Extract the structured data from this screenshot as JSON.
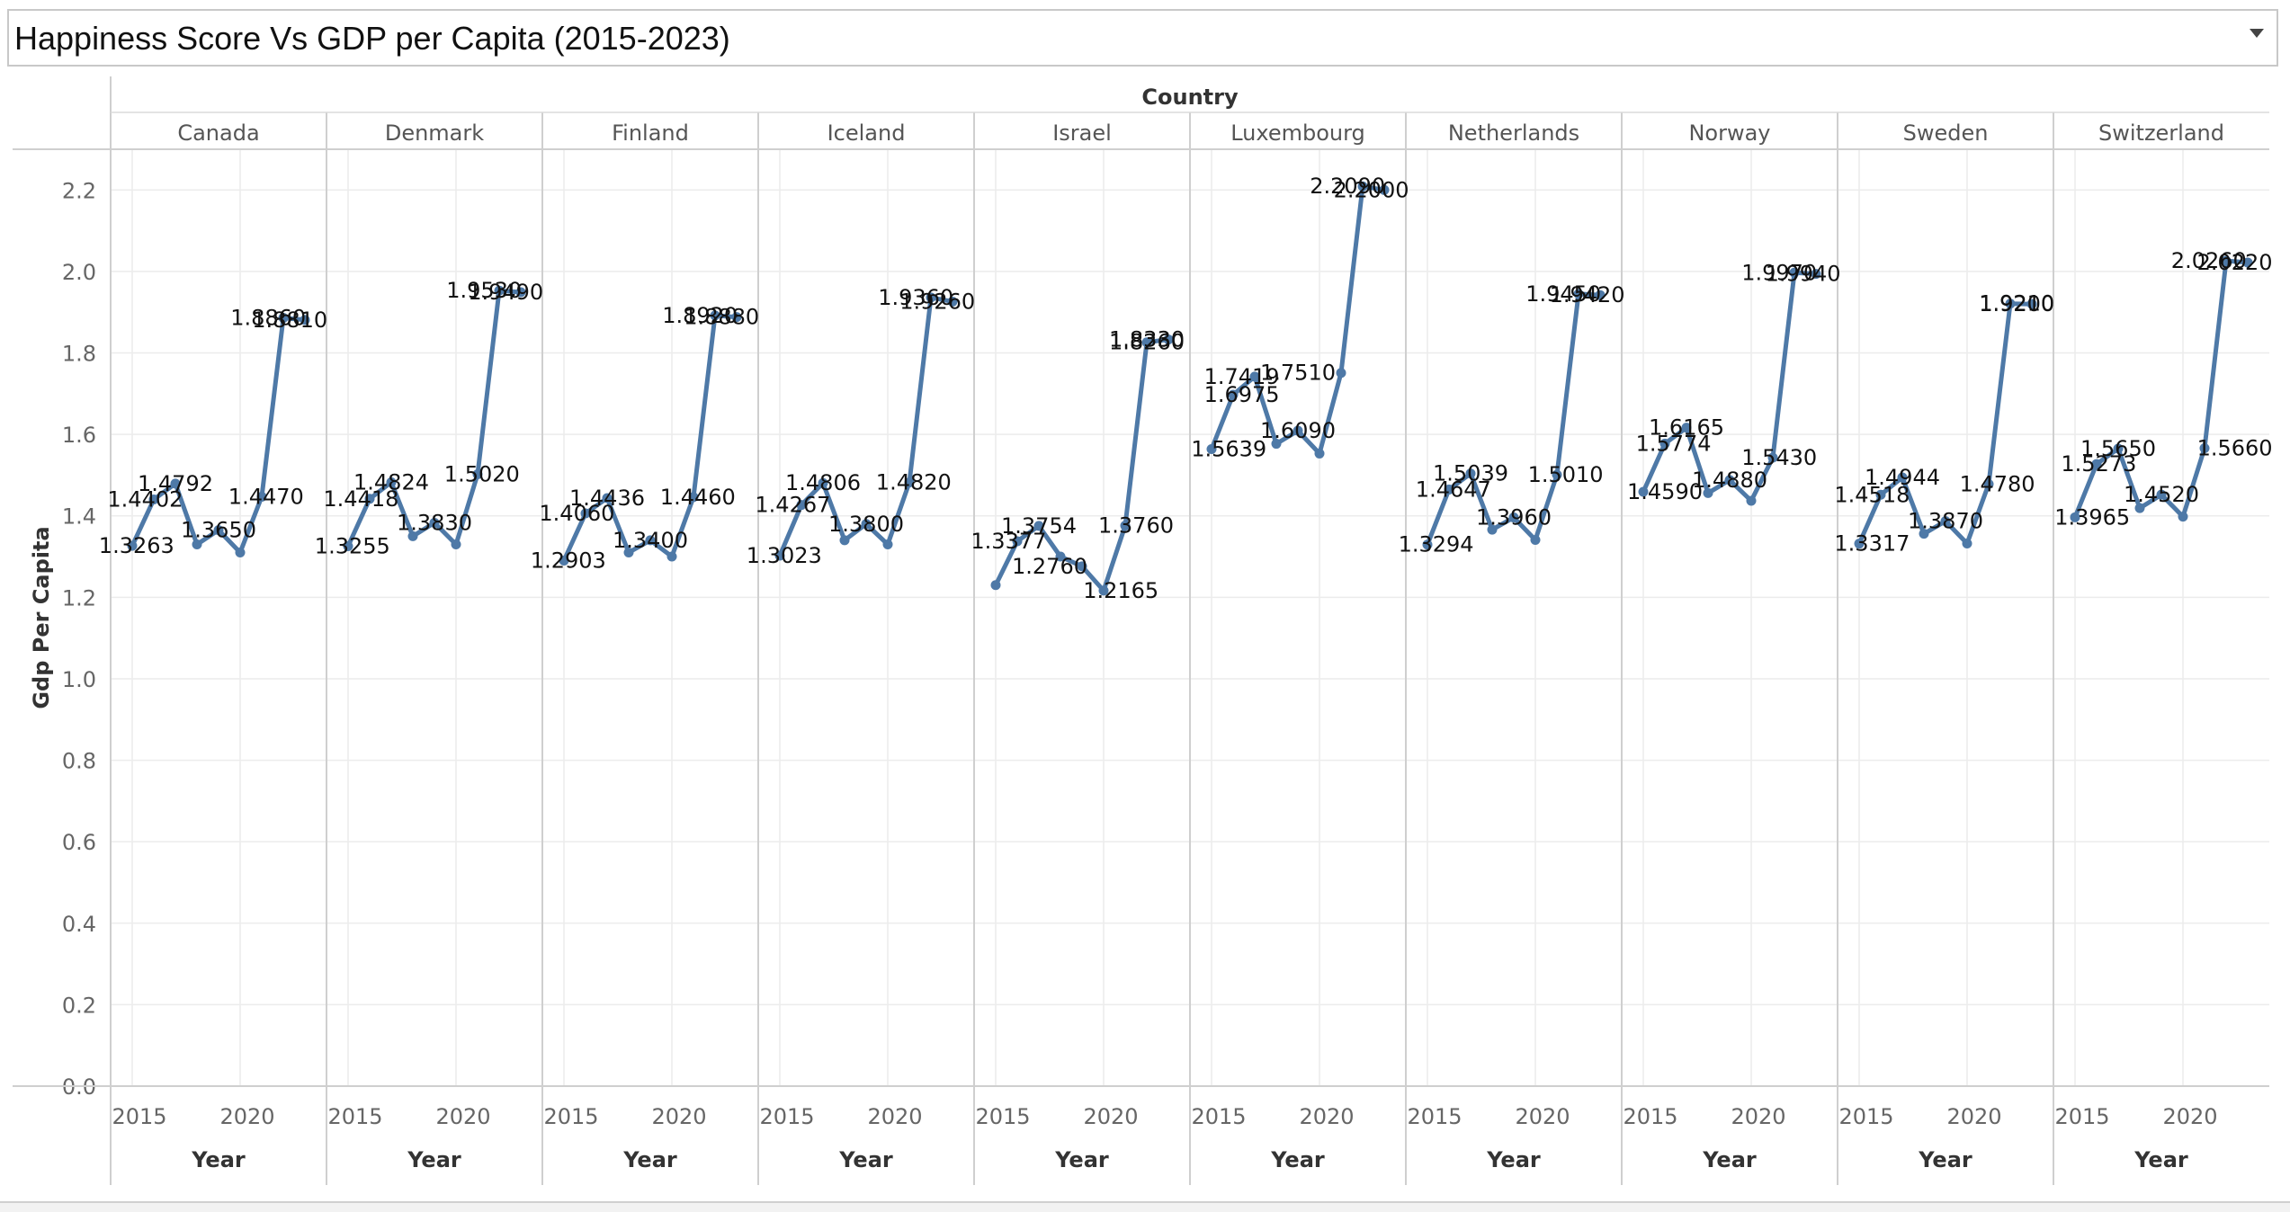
{
  "title": "Happiness Score Vs GDP per Capita (2015-2023)",
  "accent_color": "#4e79a7",
  "chart_data": {
    "type": "line",
    "column_header": "Country",
    "xlabel": "Year",
    "ylabel": "Gdp Per Capita",
    "ylim": [
      0.0,
      2.3
    ],
    "yticks": [
      0.0,
      0.2,
      0.4,
      0.6,
      0.8,
      1.0,
      1.2,
      1.4,
      1.6,
      1.8,
      2.0,
      2.2
    ],
    "xticks": [
      2015,
      2020
    ],
    "xlim": [
      2014,
      2024
    ],
    "grid": true,
    "panels": [
      {
        "country": "Canada",
        "x": [
          2015,
          2016,
          2017,
          2018,
          2019,
          2020,
          2021,
          2022,
          2023
        ],
        "y": [
          1.3263,
          1.4402,
          1.4792,
          1.33,
          1.365,
          1.31,
          1.447,
          1.886,
          1.881
        ]
      },
      {
        "country": "Denmark",
        "x": [
          2015,
          2016,
          2017,
          2018,
          2019,
          2020,
          2021,
          2022,
          2023
        ],
        "y": [
          1.3255,
          1.4418,
          1.4824,
          1.35,
          1.383,
          1.33,
          1.502,
          1.953,
          1.949
        ]
      },
      {
        "country": "Finland",
        "x": [
          2015,
          2016,
          2017,
          2018,
          2019,
          2020,
          2021,
          2022,
          2023
        ],
        "y": [
          1.2903,
          1.406,
          1.4436,
          1.31,
          1.34,
          1.3,
          1.446,
          1.892,
          1.888
        ]
      },
      {
        "country": "Iceland",
        "x": [
          2015,
          2016,
          2017,
          2018,
          2019,
          2020,
          2021,
          2022,
          2023
        ],
        "y": [
          1.3023,
          1.4267,
          1.4806,
          1.34,
          1.38,
          1.33,
          1.482,
          1.936,
          1.926
        ]
      },
      {
        "country": "Israel",
        "x": [
          2015,
          2016,
          2017,
          2018,
          2019,
          2020,
          2021,
          2022,
          2023
        ],
        "y": [
          1.23,
          1.3377,
          1.3754,
          1.3,
          1.276,
          1.2165,
          1.376,
          1.826,
          1.833
        ]
      },
      {
        "country": "Luxembourg",
        "x": [
          2015,
          2016,
          2017,
          2018,
          2019,
          2020,
          2021,
          2022,
          2023
        ],
        "y": [
          1.5639,
          1.6975,
          1.7419,
          1.577,
          1.609,
          1.553,
          1.751,
          2.209,
          2.2
        ]
      },
      {
        "country": "Netherlands",
        "x": [
          2015,
          2016,
          2017,
          2018,
          2019,
          2020,
          2021,
          2022,
          2023
        ],
        "y": [
          1.3294,
          1.4647,
          1.5039,
          1.366,
          1.396,
          1.341,
          1.501,
          1.945,
          1.942
        ]
      },
      {
        "country": "Norway",
        "x": [
          2015,
          2016,
          2017,
          2018,
          2019,
          2020,
          2021,
          2022,
          2023
        ],
        "y": [
          1.459,
          1.5774,
          1.6165,
          1.456,
          1.488,
          1.437,
          1.543,
          1.997,
          1.994
        ]
      },
      {
        "country": "Sweden",
        "x": [
          2015,
          2016,
          2017,
          2018,
          2019,
          2020,
          2021,
          2022,
          2023
        ],
        "y": [
          1.3317,
          1.4518,
          1.4944,
          1.356,
          1.387,
          1.332,
          1.478,
          1.921,
          1.92
        ]
      },
      {
        "country": "Switzerland",
        "x": [
          2015,
          2016,
          2017,
          2018,
          2019,
          2020,
          2021,
          2022,
          2023
        ],
        "y": [
          1.3965,
          1.5273,
          1.565,
          1.419,
          1.452,
          1.398,
          1.566,
          2.026,
          2.022
        ]
      }
    ],
    "data_labels": [
      {
        "panel": 0,
        "x": 2015.2,
        "y": 1.3263,
        "text": "1.3263"
      },
      {
        "panel": 0,
        "x": 2015.6,
        "y": 1.4402,
        "text": "1.4402"
      },
      {
        "panel": 0,
        "x": 2017.0,
        "y": 1.4792,
        "text": "1.4792"
      },
      {
        "panel": 0,
        "x": 2019.0,
        "y": 1.365,
        "text": "1.3650"
      },
      {
        "panel": 0,
        "x": 2021.2,
        "y": 1.447,
        "text": "1.4470"
      },
      {
        "panel": 0,
        "x": 2021.3,
        "y": 1.886,
        "text": "1.8860"
      },
      {
        "panel": 0,
        "x": 2022.3,
        "y": 1.881,
        "text": "1.8810"
      },
      {
        "panel": 1,
        "x": 2015.2,
        "y": 1.3255,
        "text": "1.3255"
      },
      {
        "panel": 1,
        "x": 2015.6,
        "y": 1.4418,
        "text": "1.4418"
      },
      {
        "panel": 1,
        "x": 2017.0,
        "y": 1.4824,
        "text": "1.4824"
      },
      {
        "panel": 1,
        "x": 2019.0,
        "y": 1.383,
        "text": "1.3830"
      },
      {
        "panel": 1,
        "x": 2021.2,
        "y": 1.502,
        "text": "1.5020"
      },
      {
        "panel": 1,
        "x": 2021.3,
        "y": 1.953,
        "text": "1.9530"
      },
      {
        "panel": 1,
        "x": 2022.3,
        "y": 1.949,
        "text": "1.9490"
      },
      {
        "panel": 2,
        "x": 2015.2,
        "y": 1.2903,
        "text": "1.2903"
      },
      {
        "panel": 2,
        "x": 2015.6,
        "y": 1.406,
        "text": "1.4060"
      },
      {
        "panel": 2,
        "x": 2017.0,
        "y": 1.4436,
        "text": "1.4436"
      },
      {
        "panel": 2,
        "x": 2019.0,
        "y": 1.34,
        "text": "1.3400"
      },
      {
        "panel": 2,
        "x": 2021.2,
        "y": 1.446,
        "text": "1.4460"
      },
      {
        "panel": 2,
        "x": 2021.3,
        "y": 1.892,
        "text": "1.8920"
      },
      {
        "panel": 2,
        "x": 2022.3,
        "y": 1.888,
        "text": "1.8880"
      },
      {
        "panel": 3,
        "x": 2015.2,
        "y": 1.3023,
        "text": "1.3023"
      },
      {
        "panel": 3,
        "x": 2015.6,
        "y": 1.4267,
        "text": "1.4267"
      },
      {
        "panel": 3,
        "x": 2017.0,
        "y": 1.4806,
        "text": "1.4806"
      },
      {
        "panel": 3,
        "x": 2019.0,
        "y": 1.38,
        "text": "1.3800"
      },
      {
        "panel": 3,
        "x": 2021.2,
        "y": 1.482,
        "text": "1.4820"
      },
      {
        "panel": 3,
        "x": 2021.3,
        "y": 1.936,
        "text": "1.9360"
      },
      {
        "panel": 3,
        "x": 2022.3,
        "y": 1.926,
        "text": "1.9260"
      },
      {
        "panel": 4,
        "x": 2015.6,
        "y": 1.3377,
        "text": "1.3377"
      },
      {
        "panel": 4,
        "x": 2017.0,
        "y": 1.3754,
        "text": "1.3754"
      },
      {
        "panel": 4,
        "x": 2017.5,
        "y": 1.276,
        "text": "1.2760"
      },
      {
        "panel": 4,
        "x": 2020.8,
        "y": 1.2165,
        "text": "1.2165"
      },
      {
        "panel": 4,
        "x": 2021.5,
        "y": 1.376,
        "text": "1.3760"
      },
      {
        "panel": 4,
        "x": 2022.0,
        "y": 1.826,
        "text": "1.8260"
      },
      {
        "panel": 4,
        "x": 2022.0,
        "y": 1.833,
        "text": "1.8330"
      },
      {
        "panel": 5,
        "x": 2015.8,
        "y": 1.5639,
        "text": "1.5639"
      },
      {
        "panel": 5,
        "x": 2016.4,
        "y": 1.6975,
        "text": "1.6975"
      },
      {
        "panel": 5,
        "x": 2016.4,
        "y": 1.7419,
        "text": "1.7419"
      },
      {
        "panel": 5,
        "x": 2019.0,
        "y": 1.609,
        "text": "1.6090"
      },
      {
        "panel": 5,
        "x": 2019.0,
        "y": 1.751,
        "text": "1.7510"
      },
      {
        "panel": 5,
        "x": 2021.3,
        "y": 2.209,
        "text": "2.2090"
      },
      {
        "panel": 5,
        "x": 2022.4,
        "y": 2.2,
        "text": "2.2000"
      },
      {
        "panel": 6,
        "x": 2015.4,
        "y": 1.3294,
        "text": "1.3294"
      },
      {
        "panel": 6,
        "x": 2016.2,
        "y": 1.4647,
        "text": "1.4647"
      },
      {
        "panel": 6,
        "x": 2017.0,
        "y": 1.5039,
        "text": "1.5039"
      },
      {
        "panel": 6,
        "x": 2019.0,
        "y": 1.396,
        "text": "1.3960"
      },
      {
        "panel": 6,
        "x": 2021.4,
        "y": 1.501,
        "text": "1.5010"
      },
      {
        "panel": 6,
        "x": 2021.3,
        "y": 1.945,
        "text": "1.9450"
      },
      {
        "panel": 6,
        "x": 2022.4,
        "y": 1.942,
        "text": "1.9420"
      },
      {
        "panel": 7,
        "x": 2016.0,
        "y": 1.459,
        "text": "1.4590"
      },
      {
        "panel": 7,
        "x": 2016.4,
        "y": 1.5774,
        "text": "1.5774"
      },
      {
        "panel": 7,
        "x": 2017.0,
        "y": 1.6165,
        "text": "1.6165"
      },
      {
        "panel": 7,
        "x": 2019.0,
        "y": 1.488,
        "text": "1.4880"
      },
      {
        "panel": 7,
        "x": 2021.3,
        "y": 1.543,
        "text": "1.5430"
      },
      {
        "panel": 7,
        "x": 2021.3,
        "y": 1.997,
        "text": "1.9970"
      },
      {
        "panel": 7,
        "x": 2022.4,
        "y": 1.994,
        "text": "1.9940"
      },
      {
        "panel": 8,
        "x": 2015.6,
        "y": 1.3317,
        "text": "1.3317"
      },
      {
        "panel": 8,
        "x": 2015.6,
        "y": 1.4518,
        "text": "1.4518"
      },
      {
        "panel": 8,
        "x": 2017.0,
        "y": 1.4944,
        "text": "1.4944"
      },
      {
        "panel": 8,
        "x": 2019.0,
        "y": 1.387,
        "text": "1.3870"
      },
      {
        "panel": 8,
        "x": 2021.4,
        "y": 1.478,
        "text": "1.4780"
      },
      {
        "panel": 8,
        "x": 2022.3,
        "y": 1.921,
        "text": "1.9210"
      },
      {
        "panel": 8,
        "x": 2022.3,
        "y": 1.92,
        "text": "1.9200"
      },
      {
        "panel": 9,
        "x": 2015.8,
        "y": 1.3965,
        "text": "1.3965"
      },
      {
        "panel": 9,
        "x": 2016.1,
        "y": 1.5273,
        "text": "1.5273"
      },
      {
        "panel": 9,
        "x": 2017.0,
        "y": 1.565,
        "text": "1.5650"
      },
      {
        "panel": 9,
        "x": 2019.0,
        "y": 1.452,
        "text": "1.4520"
      },
      {
        "panel": 9,
        "x": 2022.4,
        "y": 1.566,
        "text": "1.5660"
      },
      {
        "panel": 9,
        "x": 2021.2,
        "y": 2.026,
        "text": "2.0260"
      },
      {
        "panel": 9,
        "x": 2022.4,
        "y": 2.022,
        "text": "2.0220"
      }
    ]
  }
}
